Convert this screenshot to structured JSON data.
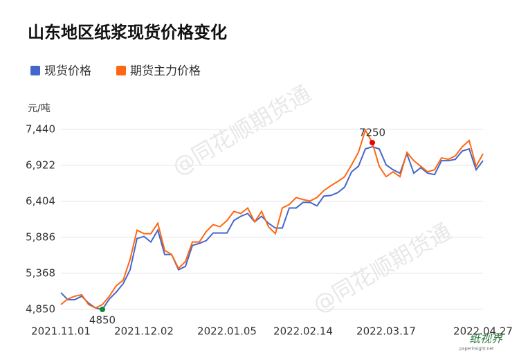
{
  "chart_data": {
    "type": "line",
    "title": "山东地区纸浆现货价格变化",
    "y_label": "元/吨",
    "watermark": "@同花顺期货通",
    "logo": {
      "name": "纸视界",
      "site": "paperinsight.net"
    },
    "categories": [
      "2021.11.01",
      null,
      null,
      null,
      null,
      null,
      null,
      null,
      null,
      null,
      null,
      null,
      "2021.12.02",
      null,
      null,
      null,
      null,
      null,
      null,
      null,
      null,
      null,
      null,
      null,
      "2022.01.05",
      null,
      null,
      null,
      null,
      null,
      null,
      null,
      null,
      null,
      null,
      "2022.02.14",
      null,
      null,
      null,
      null,
      null,
      null,
      null,
      null,
      null,
      null,
      null,
      "2022.03.17",
      null,
      null,
      null,
      null,
      null,
      null,
      null,
      null,
      null,
      null,
      null,
      null,
      null,
      "2022.04.27"
    ],
    "series": [
      {
        "name": "现货价格",
        "color": "#4466cc",
        "values": [
          5090,
          4990,
          4990,
          5040,
          4940,
          4870,
          4850,
          5000,
          5100,
          5220,
          5420,
          5870,
          5900,
          5820,
          5990,
          5640,
          5640,
          5420,
          5470,
          5770,
          5800,
          5840,
          5950,
          5950,
          5950,
          6130,
          6190,
          6230,
          6110,
          6190,
          6090,
          6020,
          6020,
          6310,
          6310,
          6390,
          6390,
          6340,
          6480,
          6490,
          6530,
          6610,
          6830,
          6910,
          7160,
          7190,
          7160,
          6930,
          6860,
          6810,
          7090,
          6810,
          6890,
          6810,
          6790,
          6990,
          6990,
          7010,
          7130,
          7160,
          6860,
          6990
        ]
      },
      {
        "name": "期货主力价格",
        "color": "#ff6611",
        "values": [
          4920,
          5000,
          5040,
          5060,
          4920,
          4870,
          4920,
          5040,
          5190,
          5270,
          5570,
          5990,
          5940,
          5940,
          6090,
          5700,
          5640,
          5440,
          5540,
          5820,
          5820,
          5970,
          6070,
          6040,
          6130,
          6260,
          6230,
          6310,
          6110,
          6260,
          6040,
          5940,
          6310,
          6360,
          6460,
          6430,
          6410,
          6460,
          6560,
          6630,
          6690,
          6760,
          6930,
          7110,
          7430,
          7250,
          6910,
          6760,
          6830,
          6760,
          7110,
          6990,
          6910,
          6830,
          6860,
          7030,
          7010,
          7060,
          7190,
          7280,
          6910,
          7090
        ]
      }
    ],
    "markers": [
      {
        "series": 1,
        "index": 45,
        "color": "#ee0000"
      },
      {
        "series": 0,
        "index": 6,
        "color": "#118833"
      }
    ],
    "ylim": [
      4850,
      7440
    ],
    "yticks": [
      {
        "value": 4850,
        "label": "4,850"
      },
      {
        "value": 5368,
        "label": "5,368"
      },
      {
        "value": 5886,
        "label": "5,886"
      },
      {
        "value": 6404,
        "label": "6,404"
      },
      {
        "value": 6922,
        "label": "6,922"
      },
      {
        "value": 7440,
        "label": "7,440"
      }
    ],
    "grid": true
  }
}
